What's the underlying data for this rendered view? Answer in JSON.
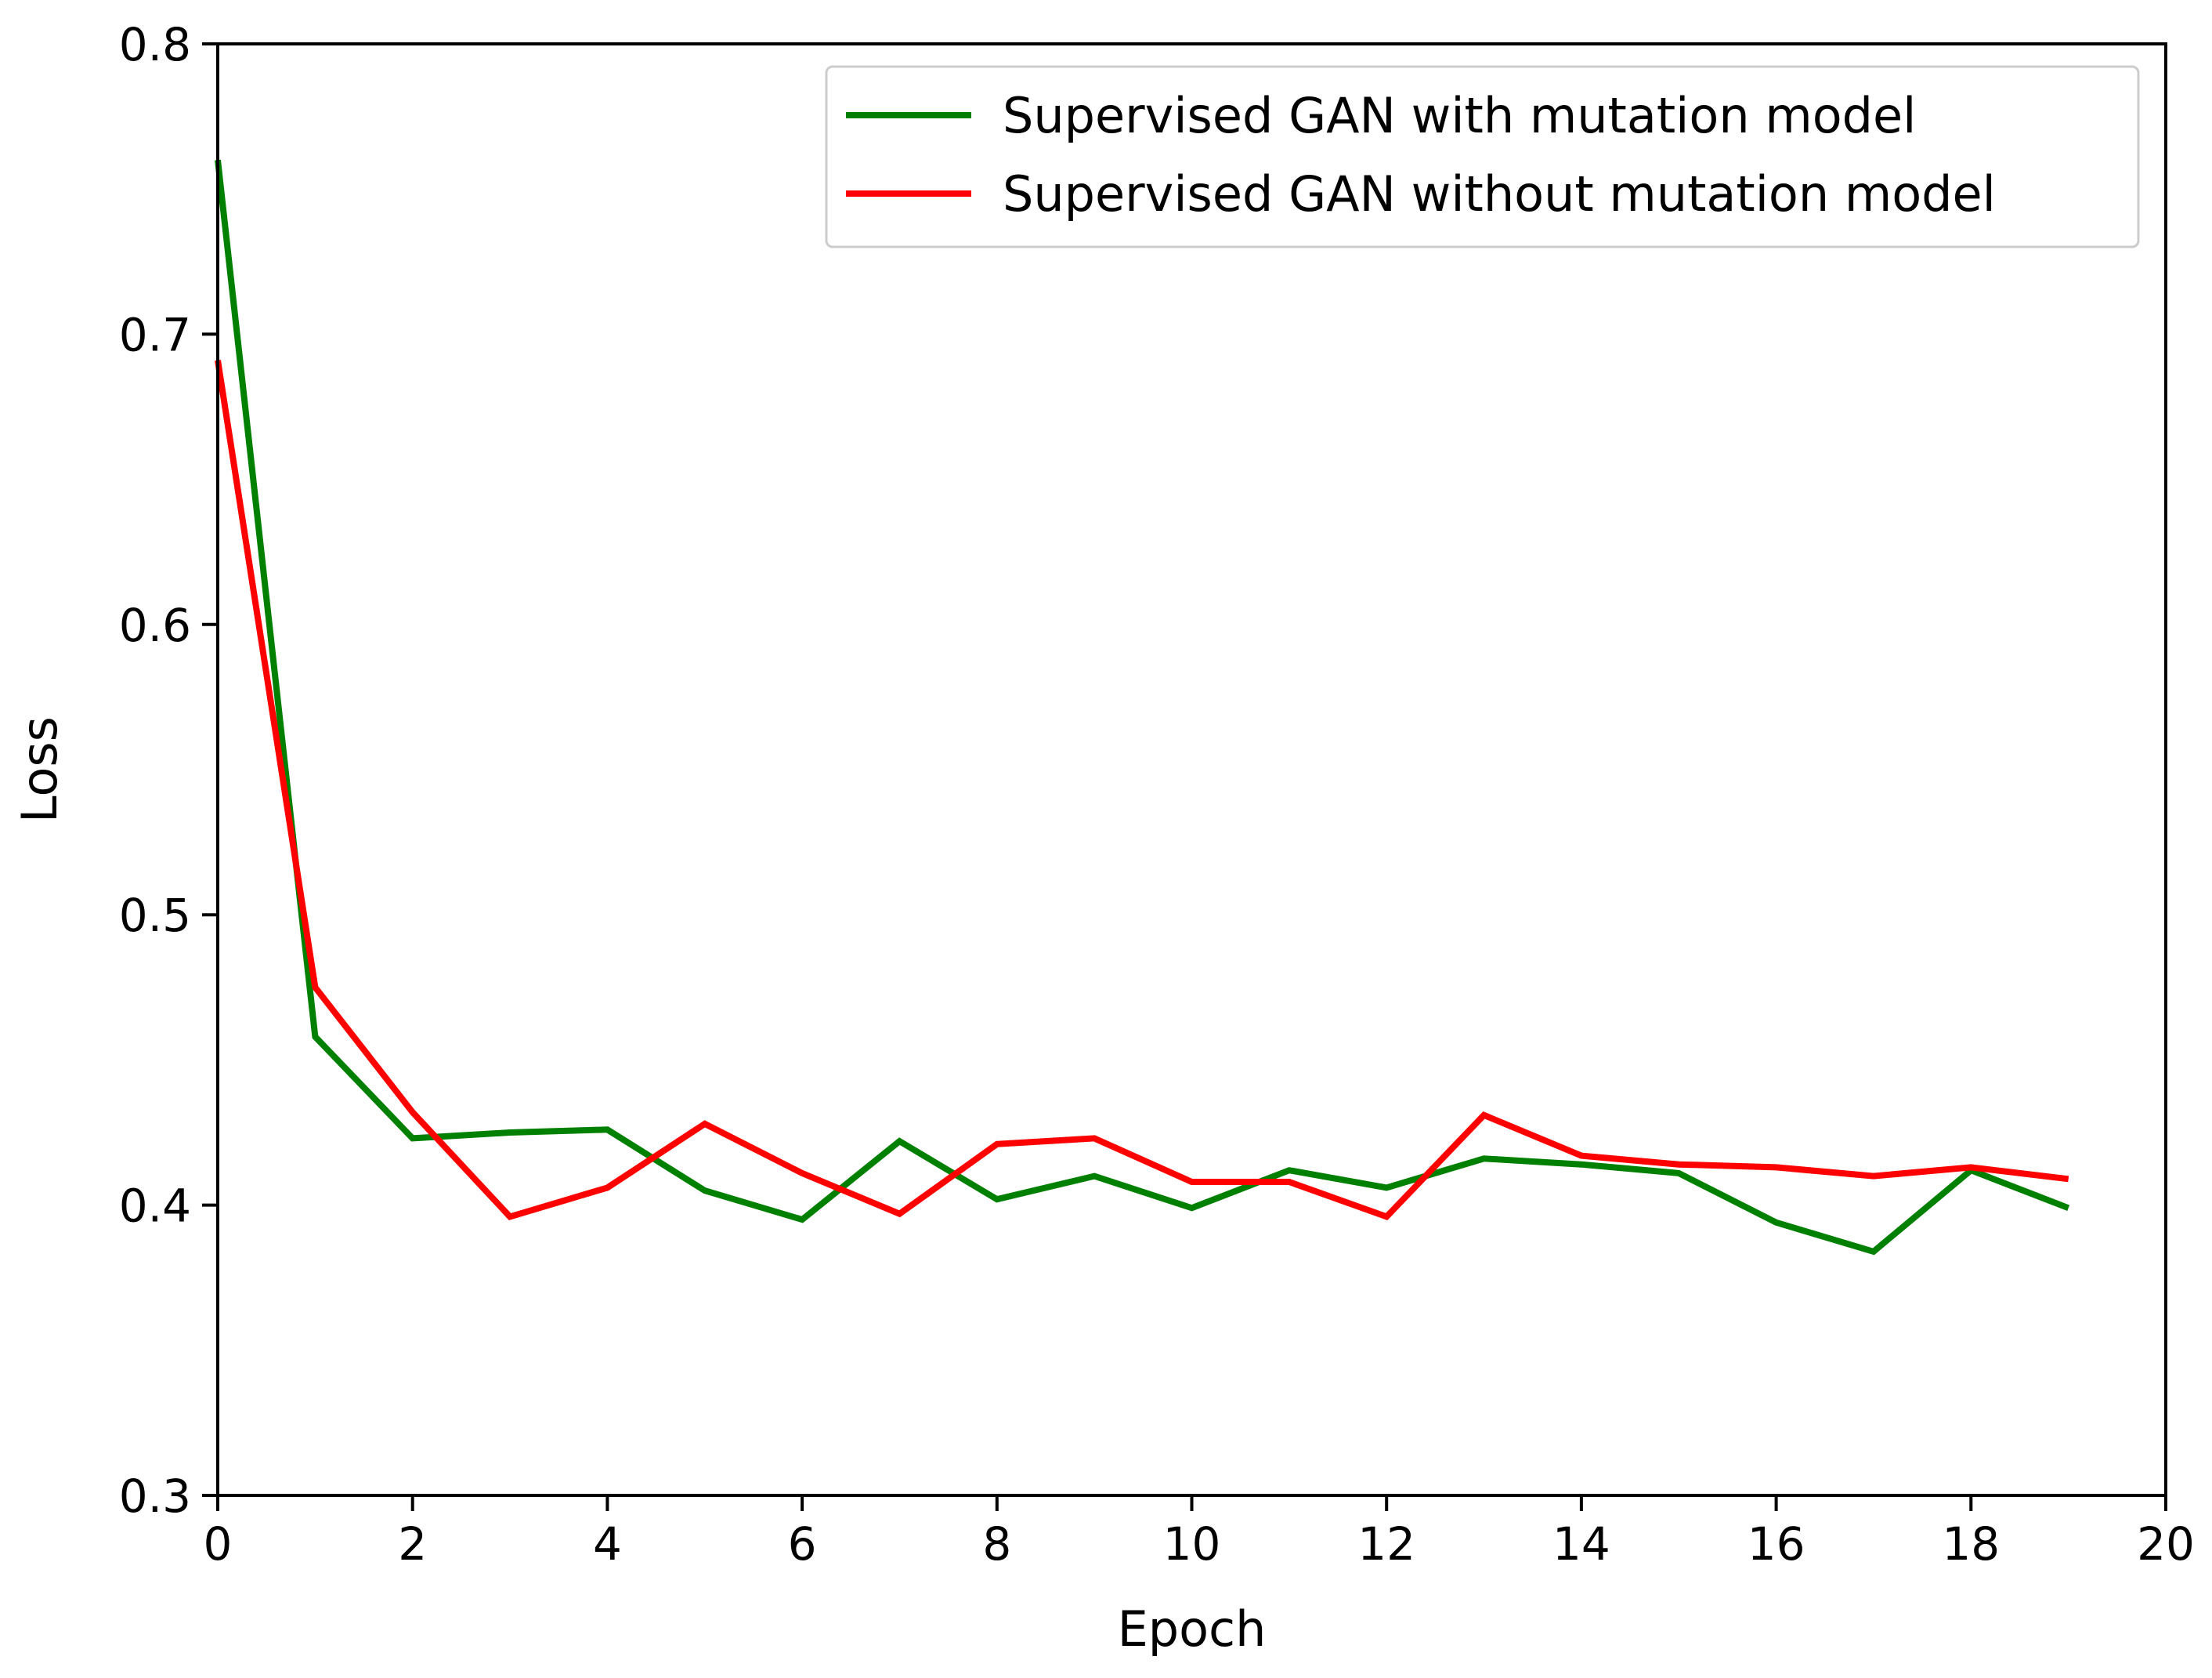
{
  "chart_data": {
    "type": "line",
    "xlabel": "Epoch",
    "ylabel": "Loss",
    "xlim": [
      0,
      20
    ],
    "ylim": [
      0.3,
      0.8
    ],
    "xticks": [
      0,
      2,
      4,
      6,
      8,
      10,
      12,
      14,
      16,
      18,
      20
    ],
    "yticks": [
      0.3,
      0.4,
      0.5,
      0.6,
      0.7,
      0.8
    ],
    "xtick_labels": [
      "0",
      "2",
      "4",
      "6",
      "8",
      "10",
      "12",
      "14",
      "16",
      "18",
      "20"
    ],
    "ytick_labels": [
      "0.3",
      "0.4",
      "0.5",
      "0.6",
      "0.7",
      "0.8"
    ],
    "grid": false,
    "legend_position": "top-right",
    "x": [
      0,
      1,
      2,
      3,
      4,
      5,
      6,
      7,
      8,
      9,
      10,
      11,
      12,
      13,
      14,
      15,
      16,
      17,
      18,
      19
    ],
    "series": [
      {
        "name": "Supervised GAN with mutation model",
        "color": "#008000",
        "values": [
          0.76,
          0.458,
          0.423,
          0.425,
          0.426,
          0.405,
          0.395,
          0.422,
          0.402,
          0.41,
          0.399,
          0.412,
          0.406,
          0.416,
          0.414,
          0.411,
          0.394,
          0.384,
          0.412,
          0.399
        ]
      },
      {
        "name": "Supervised GAN without mutation model",
        "color": "#ff0000",
        "values": [
          0.691,
          0.475,
          0.432,
          0.396,
          0.406,
          0.428,
          0.411,
          0.397,
          0.421,
          0.423,
          0.408,
          0.408,
          0.396,
          0.431,
          0.417,
          0.414,
          0.413,
          0.41,
          0.413,
          0.409
        ]
      }
    ]
  }
}
